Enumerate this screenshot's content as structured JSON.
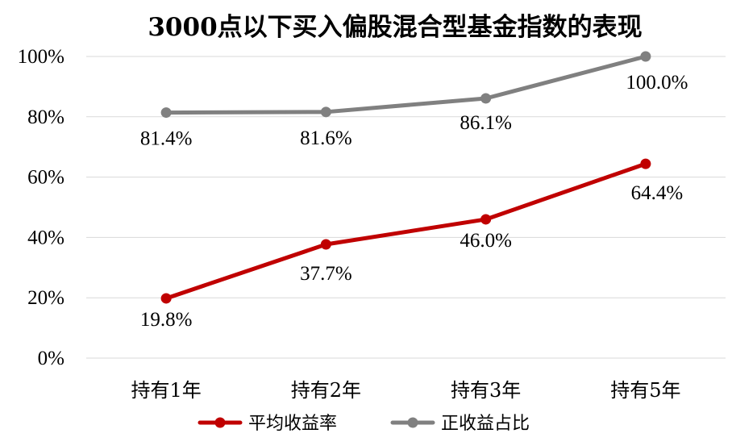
{
  "chart_data": {
    "type": "line",
    "title": "3000点以下买入偏股混合型基金指数的表现",
    "categories": [
      "持有1年",
      "持有2年",
      "持有3年",
      "持有5年"
    ],
    "ylim": [
      0,
      100
    ],
    "yticks": [
      "0%",
      "20%",
      "40%",
      "60%",
      "80%",
      "100%"
    ],
    "grid": true,
    "legend_position": "bottom",
    "series": [
      {
        "name": "平均收益率",
        "color": "#C00000",
        "values": [
          19.8,
          37.7,
          46.0,
          64.4
        ],
        "labels": [
          "19.8%",
          "37.7%",
          "46.0%",
          "64.4%"
        ]
      },
      {
        "name": "正收益占比",
        "color": "#808080",
        "values": [
          81.4,
          81.6,
          86.1,
          100.0
        ],
        "labels": [
          "81.4%",
          "81.6%",
          "86.1%",
          "100.0%"
        ]
      }
    ]
  }
}
